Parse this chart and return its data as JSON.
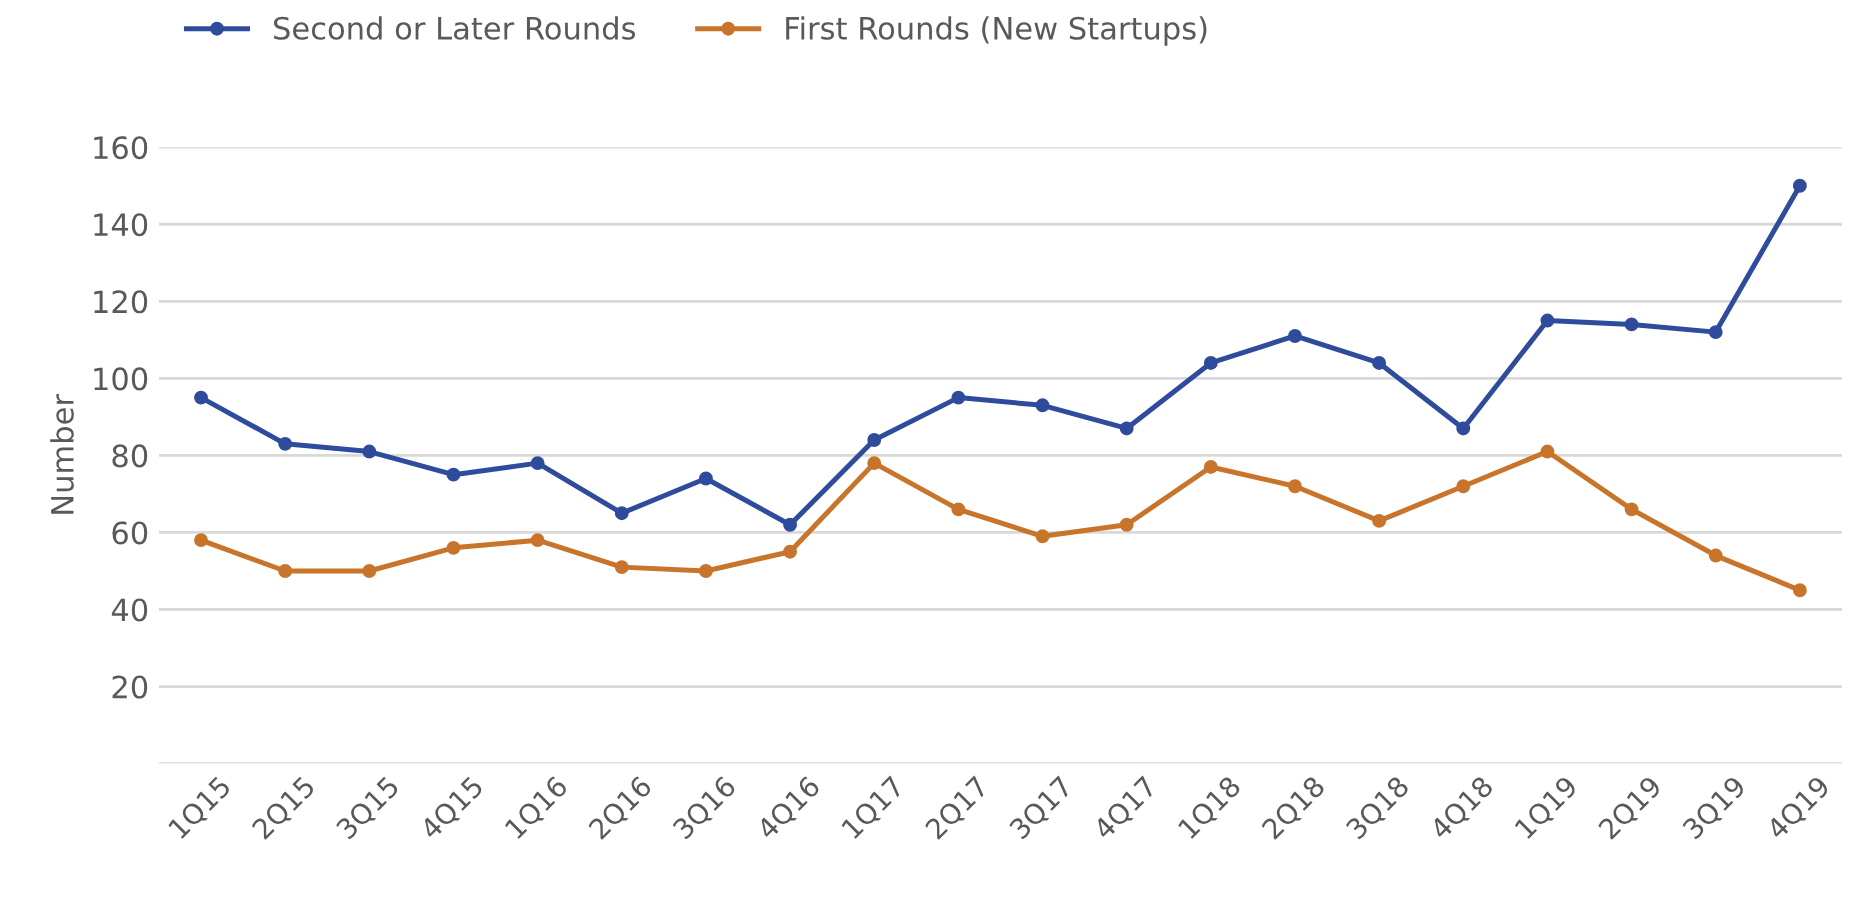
{
  "chart_data": {
    "type": "line",
    "ylabel": "Number",
    "categories": [
      "1Q15",
      "2Q15",
      "3Q15",
      "4Q15",
      "1Q16",
      "2Q16",
      "3Q16",
      "4Q16",
      "1Q17",
      "2Q17",
      "3Q17",
      "4Q17",
      "1Q18",
      "2Q18",
      "3Q18",
      "4Q18",
      "1Q19",
      "2Q19",
      "3Q19",
      "4Q19"
    ],
    "series": [
      {
        "name": "Second or Later Rounds",
        "color": "#2f4b9c",
        "values": [
          95,
          83,
          81,
          75,
          78,
          65,
          74,
          62,
          84,
          95,
          93,
          87,
          104,
          111,
          104,
          87,
          115,
          114,
          112,
          150
        ]
      },
      {
        "name": "First Rounds (New Startups)",
        "color": "#c8742a",
        "values": [
          58,
          50,
          50,
          56,
          58,
          51,
          50,
          55,
          78,
          66,
          59,
          62,
          77,
          72,
          63,
          72,
          81,
          66,
          54,
          45
        ]
      }
    ],
    "ylim": [
      0,
      160
    ],
    "yticks": [
      {
        "value": 0,
        "label": null
      },
      20,
      40,
      60,
      80,
      100,
      120,
      140,
      160
    ],
    "grid": "y",
    "legend": "top left",
    "marker": "circle",
    "line_style": "solid"
  }
}
